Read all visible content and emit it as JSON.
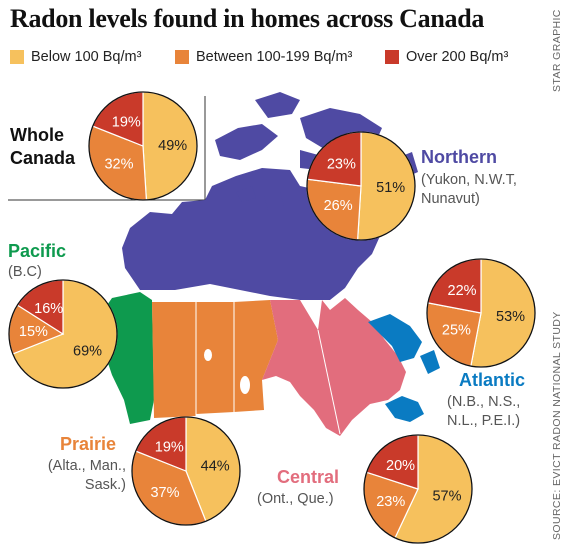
{
  "title": "Radon levels found in homes across Canada",
  "credit": "STAR GRAPHIC",
  "source": "SOURCE: EVICT RADON NATIONAL STUDY",
  "legend": [
    {
      "label": "Below 100 Bq/m³",
      "color": "#F6C15D"
    },
    {
      "label": "Between 100-199 Bq/m³",
      "color": "#E8843A"
    },
    {
      "label": "Over 200 Bq/m³",
      "color": "#C93A2A"
    }
  ],
  "regions": {
    "whole": {
      "name_lines": [
        "Whole",
        "Canada"
      ],
      "color": "#111111"
    },
    "northern": {
      "name": "Northern",
      "sub_lines": [
        "(Yukon, N.W.T,",
        "Nunavut)"
      ],
      "color": "#4F4AA3"
    },
    "pacific": {
      "name": "Pacific",
      "sub_lines": [
        "(B.C)"
      ],
      "color": "#0E9A4E"
    },
    "atlantic": {
      "name": "Atlantic",
      "sub_lines": [
        "(N.B., N.S.,",
        "N.L., P.E.I.)"
      ],
      "color": "#0A7BC2"
    },
    "prairie": {
      "name": "Prairie",
      "sub_lines": [
        "(Alta., Man.,",
        "Sask.)"
      ],
      "color": "#E8843A"
    },
    "central": {
      "name": "Central",
      "sub_lines": [
        "(Ont., Que.)"
      ],
      "color": "#E26D7D"
    }
  },
  "chart_data": [
    {
      "type": "pie",
      "region": "Whole Canada",
      "categories": [
        "Below 100 Bq/m³",
        "Between 100-199 Bq/m³",
        "Over 200 Bq/m³"
      ],
      "values": [
        49,
        32,
        19
      ],
      "labels": [
        "49%",
        "32%",
        "19%"
      ]
    },
    {
      "type": "pie",
      "region": "Northern",
      "categories": [
        "Below 100 Bq/m³",
        "Between 100-199 Bq/m³",
        "Over 200 Bq/m³"
      ],
      "values": [
        51,
        26,
        23
      ],
      "labels": [
        "51%",
        "26%",
        "23%"
      ]
    },
    {
      "type": "pie",
      "region": "Pacific",
      "categories": [
        "Below 100 Bq/m³",
        "Between 100-199 Bq/m³",
        "Over 200 Bq/m³"
      ],
      "values": [
        69,
        15,
        16
      ],
      "labels": [
        "69%",
        "15%",
        "16%"
      ]
    },
    {
      "type": "pie",
      "region": "Atlantic",
      "categories": [
        "Below 100 Bq/m³",
        "Between 100-199 Bq/m³",
        "Over 200 Bq/m³"
      ],
      "values": [
        53,
        25,
        22
      ],
      "labels": [
        "53%",
        "25%",
        "22%"
      ]
    },
    {
      "type": "pie",
      "region": "Prairie",
      "categories": [
        "Below 100 Bq/m³",
        "Between 100-199 Bq/m³",
        "Over 200 Bq/m³"
      ],
      "values": [
        44,
        37,
        19
      ],
      "labels": [
        "44%",
        "37%",
        "19%"
      ]
    },
    {
      "type": "pie",
      "region": "Central",
      "categories": [
        "Below 100 Bq/m³",
        "Between 100-199 Bq/m³",
        "Over 200 Bq/m³"
      ],
      "values": [
        57,
        23,
        20
      ],
      "labels": [
        "57%",
        "23%",
        "20%"
      ]
    }
  ]
}
